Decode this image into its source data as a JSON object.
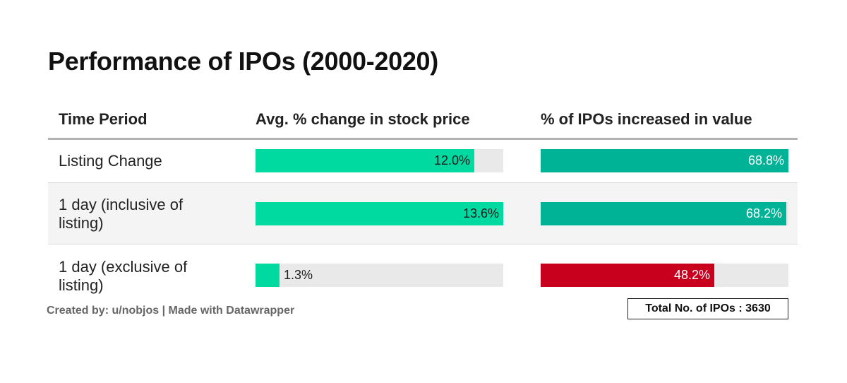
{
  "colors": {
    "col1_fill": "#00d9a0",
    "col2_fill": "#00b296",
    "col2_negative_fill": "#c8001e",
    "track": "#e9e9e9"
  },
  "chart_data": {
    "type": "table",
    "title": "Performance of IPOs (2000-2020)",
    "columns": [
      "Time Period",
      "Avg. % change in stock price",
      "% of IPOs increased in value"
    ],
    "rows": [
      {
        "period": "Listing Change",
        "avg_change": 12.0,
        "avg_change_label": "12.0%",
        "pct_increased": 68.8,
        "pct_increased_label": "68.8%"
      },
      {
        "period": "1 day (inclusive of listing)",
        "avg_change": 13.6,
        "avg_change_label": "13.6%",
        "pct_increased": 68.2,
        "pct_increased_label": "68.2%"
      },
      {
        "period": "1 day (exclusive of listing)",
        "avg_change": 1.3,
        "avg_change_label": "1.3%",
        "pct_increased": 48.2,
        "pct_increased_label": "48.2%"
      }
    ],
    "avg_change_max": 13.6,
    "pct_increased_max": 68.8
  },
  "footer": {
    "credit": "Created by: u/nobjos | Made with Datawrapper",
    "total": "Total No. of IPOs : 3630"
  }
}
